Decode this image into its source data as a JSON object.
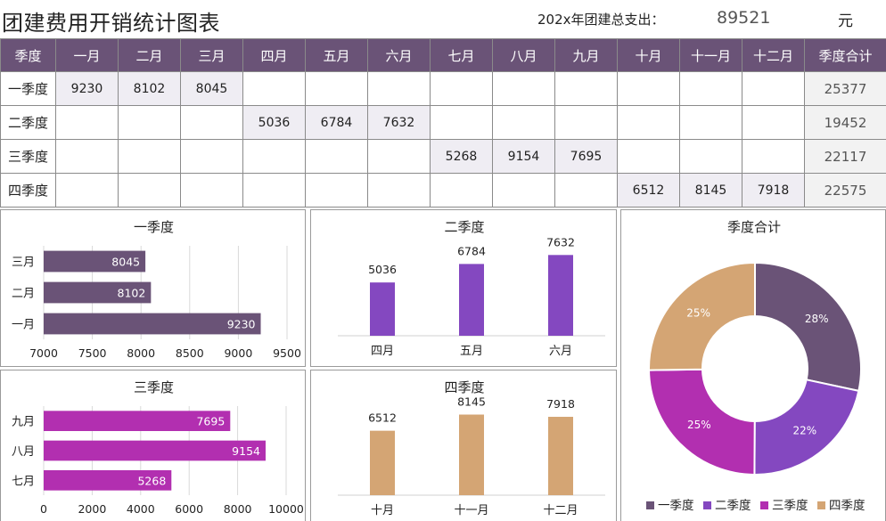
{
  "header": {
    "title": "团建费用开销统计图表",
    "total_label": "202x年团建总支出：",
    "total_value": "89521",
    "total_unit": "元"
  },
  "table": {
    "columns": [
      "季度",
      "一月",
      "二月",
      "三月",
      "四月",
      "五月",
      "六月",
      "七月",
      "八月",
      "九月",
      "十月",
      "十一月",
      "十二月",
      "季度合计"
    ],
    "rows": [
      {
        "label": "一季度",
        "cells": [
          "9230",
          "8102",
          "8045",
          "",
          "",
          "",
          "",
          "",
          "",
          "",
          "",
          ""
        ],
        "sum": "25377"
      },
      {
        "label": "二季度",
        "cells": [
          "",
          "",
          "",
          "5036",
          "6784",
          "7632",
          "",
          "",
          "",
          "",
          "",
          ""
        ],
        "sum": "19452"
      },
      {
        "label": "三季度",
        "cells": [
          "",
          "",
          "",
          "",
          "",
          "",
          "5268",
          "9154",
          "7695",
          "",
          "",
          ""
        ],
        "sum": "22117"
      },
      {
        "label": "四季度",
        "cells": [
          "",
          "",
          "",
          "",
          "",
          "",
          "",
          "",
          "",
          "6512",
          "8145",
          "7918"
        ],
        "sum": "22575"
      }
    ]
  },
  "colors": {
    "header_bg": "#6a5377",
    "q1": "#6a5377",
    "q2": "#8448c0",
    "q3": "#b22fb0",
    "q4": "#d4a574"
  },
  "chart_data": [
    {
      "id": "q1",
      "type": "bar",
      "orientation": "horizontal",
      "title": "一季度",
      "categories": [
        "一月",
        "二月",
        "三月"
      ],
      "values": [
        9230,
        8102,
        8045
      ],
      "xlim": [
        7000,
        9500
      ],
      "ticks": [
        7000,
        7500,
        8000,
        8500,
        9000,
        9500
      ],
      "color": "#6a5377",
      "grid": true
    },
    {
      "id": "q2",
      "type": "bar",
      "orientation": "vertical",
      "title": "二季度",
      "categories": [
        "四月",
        "五月",
        "六月"
      ],
      "values": [
        5036,
        6784,
        7632
      ],
      "ylim": [
        0,
        8500
      ],
      "color": "#8448c0",
      "grid": false
    },
    {
      "id": "q3",
      "type": "bar",
      "orientation": "horizontal",
      "title": "三季度",
      "categories": [
        "七月",
        "八月",
        "九月"
      ],
      "values": [
        5268,
        9154,
        7695
      ],
      "xlim": [
        0,
        10000
      ],
      "ticks": [
        0,
        2000,
        4000,
        6000,
        8000,
        10000
      ],
      "color": "#b22fb0",
      "grid": true
    },
    {
      "id": "q4",
      "type": "bar",
      "orientation": "vertical",
      "title": "四季度",
      "categories": [
        "十月",
        "十一月",
        "十二月"
      ],
      "values": [
        6512,
        8145,
        7918
      ],
      "ylim": [
        0,
        9000
      ],
      "color": "#d4a574",
      "grid": false
    },
    {
      "id": "total",
      "type": "pie",
      "donut": true,
      "title": "季度合计",
      "categories": [
        "一季度",
        "二季度",
        "三季度",
        "四季度"
      ],
      "values": [
        25377,
        19452,
        22117,
        22575
      ],
      "labels": [
        "28%",
        "22%",
        "25%",
        "25%"
      ],
      "colors": [
        "#6a5377",
        "#8448c0",
        "#b22fb0",
        "#d4a574"
      ],
      "legend": "bottom"
    }
  ]
}
